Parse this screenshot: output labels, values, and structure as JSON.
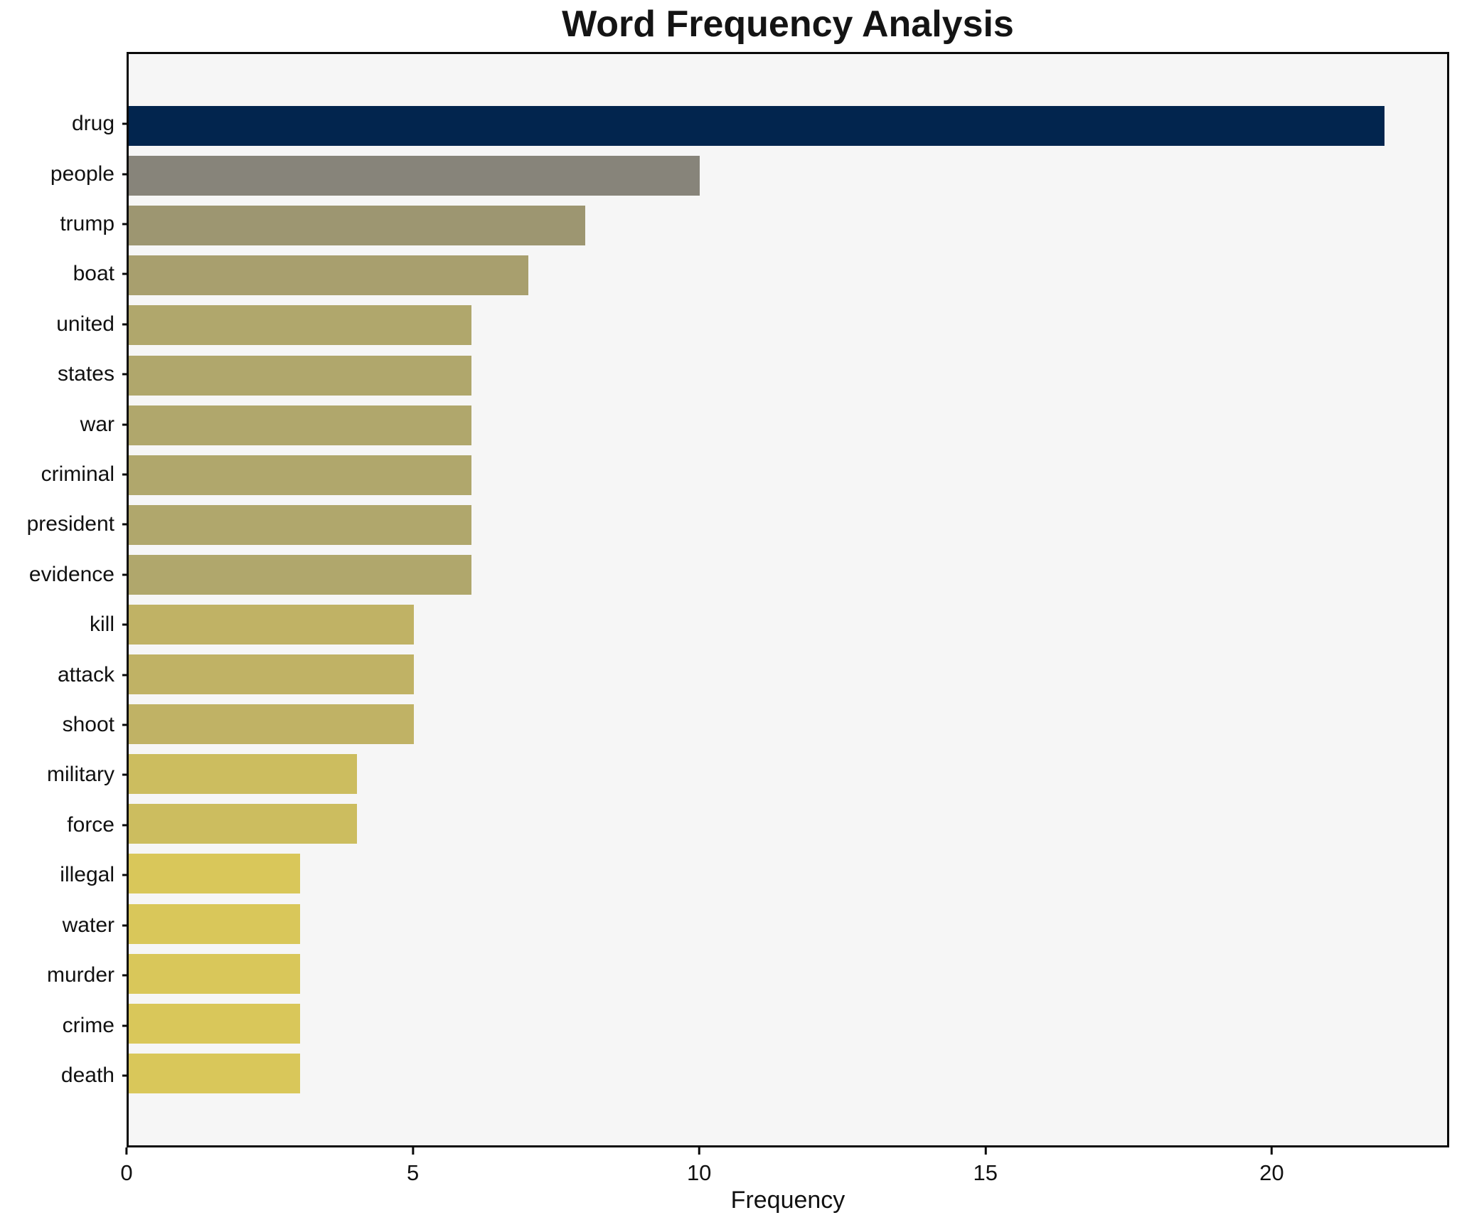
{
  "chart_data": {
    "type": "bar",
    "orientation": "horizontal",
    "title": "Word Frequency Analysis",
    "xlabel": "Frequency",
    "ylabel": "",
    "categories": [
      "drug",
      "people",
      "trump",
      "boat",
      "united",
      "states",
      "war",
      "criminal",
      "president",
      "evidence",
      "kill",
      "attack",
      "shoot",
      "military",
      "force",
      "illegal",
      "water",
      "murder",
      "crime",
      "death"
    ],
    "values": [
      22,
      10,
      8,
      7,
      6,
      6,
      6,
      6,
      6,
      6,
      5,
      5,
      5,
      4,
      4,
      3,
      3,
      3,
      3,
      3
    ],
    "bar_colors": [
      "#02254e",
      "#87847a",
      "#9d9671",
      "#a89f6e",
      "#b0a76c",
      "#b0a76c",
      "#b0a76c",
      "#b0a76c",
      "#b0a76c",
      "#b0a76c",
      "#c0b265",
      "#c0b265",
      "#c0b265",
      "#ccbd5f",
      "#ccbd5f",
      "#d9c75a",
      "#d9c75a",
      "#d9c75a",
      "#d9c75a",
      "#d9c75a"
    ],
    "xlim": [
      0,
      23.1
    ],
    "xticks": [
      0,
      5,
      10,
      15,
      20
    ],
    "grid": false,
    "legend": false
  },
  "colors": {
    "figure_background": "#ffffff",
    "axes_background": "#f6f6f6",
    "spine": "#0a0a0a",
    "text": "#111111"
  }
}
